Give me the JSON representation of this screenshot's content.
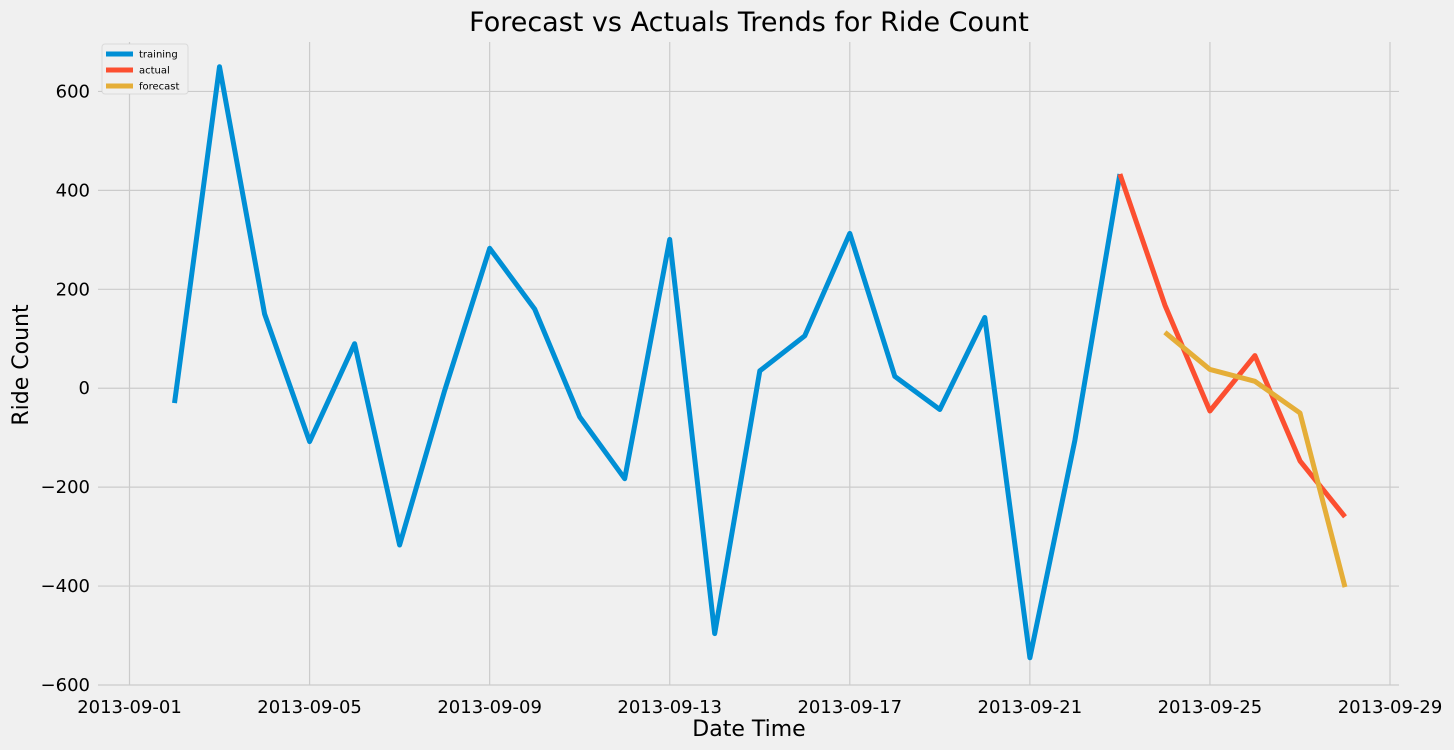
{
  "chart_data": {
    "type": "line",
    "title": "Forecast vs Actuals Trends for Ride Count",
    "xlabel": "Date Time",
    "ylabel": "Ride Count",
    "xlim": [
      "2013-09-01",
      "2013-09-29"
    ],
    "ylim": [
      -600,
      700
    ],
    "x_ticks": [
      "2013-09-01",
      "2013-09-05",
      "2013-09-09",
      "2013-09-13",
      "2013-09-17",
      "2013-09-21",
      "2013-09-25",
      "2013-09-29"
    ],
    "y_ticks": [
      -600,
      -400,
      -200,
      0,
      200,
      400,
      600
    ],
    "y_tick_labels": [
      "−600",
      "−400",
      "−200",
      "0",
      "200",
      "400",
      "600"
    ],
    "grid": true,
    "legend_position": "top-left",
    "series": [
      {
        "name": "training",
        "color": "#008fd5",
        "points": [
          [
            "2013-09-02",
            -30
          ],
          [
            "2013-09-03",
            650
          ],
          [
            "2013-09-04",
            150
          ],
          [
            "2013-09-05",
            -108
          ],
          [
            "2013-09-06",
            90
          ],
          [
            "2013-09-07",
            -317
          ],
          [
            "2013-09-08",
            -5
          ],
          [
            "2013-09-09",
            283
          ],
          [
            "2013-09-10",
            160
          ],
          [
            "2013-09-11",
            -58
          ],
          [
            "2013-09-12",
            -183
          ],
          [
            "2013-09-13",
            301
          ],
          [
            "2013-09-14",
            -496
          ],
          [
            "2013-09-15",
            35
          ],
          [
            "2013-09-16",
            106
          ],
          [
            "2013-09-17",
            313
          ],
          [
            "2013-09-18",
            24
          ],
          [
            "2013-09-19",
            -43
          ],
          [
            "2013-09-20",
            143
          ],
          [
            "2013-09-21",
            -545
          ],
          [
            "2013-09-22",
            -105
          ],
          [
            "2013-09-23",
            433
          ]
        ]
      },
      {
        "name": "actual",
        "color": "#fc4f30",
        "points": [
          [
            "2013-09-23",
            433
          ],
          [
            "2013-09-24",
            168
          ],
          [
            "2013-09-25",
            -46
          ],
          [
            "2013-09-26",
            66
          ],
          [
            "2013-09-27",
            -147
          ],
          [
            "2013-09-28",
            -260
          ]
        ]
      },
      {
        "name": "forecast",
        "color": "#e5ae38",
        "points": [
          [
            "2013-09-24",
            113
          ],
          [
            "2013-09-25",
            38
          ],
          [
            "2013-09-26",
            14
          ],
          [
            "2013-09-27",
            -50
          ],
          [
            "2013-09-28",
            -402
          ]
        ]
      }
    ]
  }
}
